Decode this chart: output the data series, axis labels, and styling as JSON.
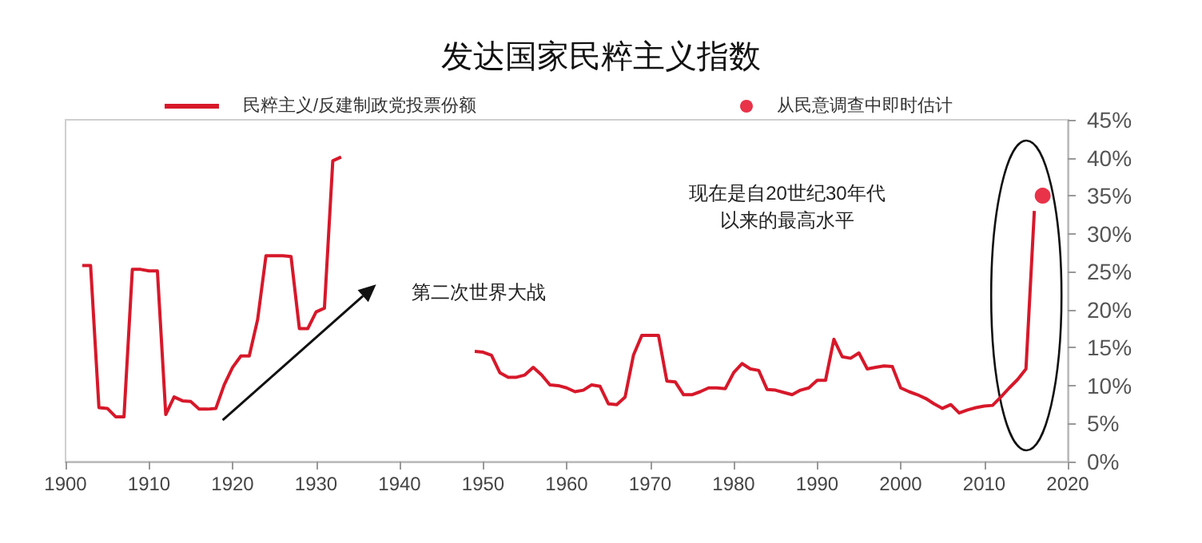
{
  "chart_data": {
    "type": "line",
    "title": "发达国家民粹主义指数",
    "series": [
      {
        "name": "民粹主义/反建制政党投票份额",
        "color": "#d7182a",
        "marker": "none",
        "x": [
          1902,
          1903,
          1904,
          1905,
          1906,
          1907,
          1908,
          1909,
          1910,
          1911,
          1912,
          1913,
          1914,
          1915,
          1916,
          1917,
          1918,
          1919,
          1920,
          1921,
          1922,
          1923,
          1924,
          1925,
          1926,
          1927,
          1928,
          1929,
          1930,
          1931,
          1932,
          1933,
          1940,
          1949,
          1950,
          1951,
          1952,
          1953,
          1954,
          1955,
          1956,
          1957,
          1958,
          1959,
          1960,
          1961,
          1962,
          1963,
          1964,
          1965,
          1966,
          1967,
          1968,
          1969,
          1970,
          1971,
          1972,
          1973,
          1974,
          1975,
          1976,
          1977,
          1978,
          1979,
          1980,
          1981,
          1982,
          1983,
          1984,
          1985,
          1986,
          1987,
          1988,
          1989,
          1990,
          1991,
          1992,
          1993,
          1994,
          1995,
          1996,
          1997,
          1998,
          1999,
          2000,
          2001,
          2002,
          2003,
          2004,
          2005,
          2006,
          2007,
          2008,
          2009,
          2010,
          2011,
          2012,
          2013,
          2014,
          2015,
          2016
        ],
        "values": [
          25.8,
          25.8,
          7.1,
          7.0,
          5.9,
          5.9,
          25.3,
          25.3,
          25.1,
          25.1,
          6.2,
          8.5,
          8.0,
          7.9,
          6.9,
          6.9,
          7.0,
          10.1,
          12.4,
          13.9,
          13.9,
          18.7,
          27.1,
          27.1,
          27.1,
          27.0,
          17.5,
          17.5,
          19.7,
          20.2,
          39.6,
          40.1,
          null,
          14.5,
          14.4,
          14.0,
          11.7,
          11.1,
          11.1,
          11.4,
          12.4,
          11.4,
          10.1,
          10.0,
          9.7,
          9.2,
          9.4,
          10.1,
          9.9,
          7.6,
          7.5,
          8.5,
          14.0,
          16.6,
          16.6,
          16.6,
          10.6,
          10.5,
          8.8,
          8.8,
          9.2,
          9.7,
          9.7,
          9.6,
          11.7,
          12.9,
          12.2,
          12.0,
          9.5,
          9.4,
          9.1,
          8.8,
          9.4,
          9.7,
          10.7,
          10.7,
          16.1,
          13.8,
          13.6,
          14.3,
          12.2,
          12.4,
          12.6,
          12.5,
          9.7,
          9.2,
          8.8,
          8.3,
          7.6,
          7.0,
          7.5,
          6.4,
          6.8,
          7.1,
          7.3,
          7.4,
          8.5,
          9.7,
          10.8,
          12.2,
          33.0
        ]
      },
      {
        "name": "从民意调查中即时估计",
        "color": "#e3001b",
        "type": "scatter",
        "marker": "circle",
        "x": [
          2017
        ],
        "values": [
          35
        ]
      }
    ],
    "xlim": [
      1900,
      2020
    ],
    "xticks": [
      1900,
      1910,
      1920,
      1930,
      1940,
      1950,
      1960,
      1970,
      1980,
      1990,
      2000,
      2010,
      2020
    ],
    "ylim": [
      0,
      45
    ],
    "yticks": [
      {
        "value": 0,
        "label": "0%"
      },
      {
        "value": 5,
        "label": "5%"
      },
      {
        "value": 10,
        "label": "10%"
      },
      {
        "value": 15,
        "label": "15%"
      },
      {
        "value": 20,
        "label": "20%"
      },
      {
        "value": 25,
        "label": "25%"
      },
      {
        "value": 30,
        "label": "30%"
      },
      {
        "value": 35,
        "label": "35%"
      },
      {
        "value": 40,
        "label": "40%"
      },
      {
        "value": 45,
        "label": "45%"
      }
    ],
    "annotations": [
      "第二次世界大战",
      "现在是自20世纪30年代以来的最高水平"
    ],
    "grid": false,
    "legend": "top",
    "line_style": "solid"
  }
}
